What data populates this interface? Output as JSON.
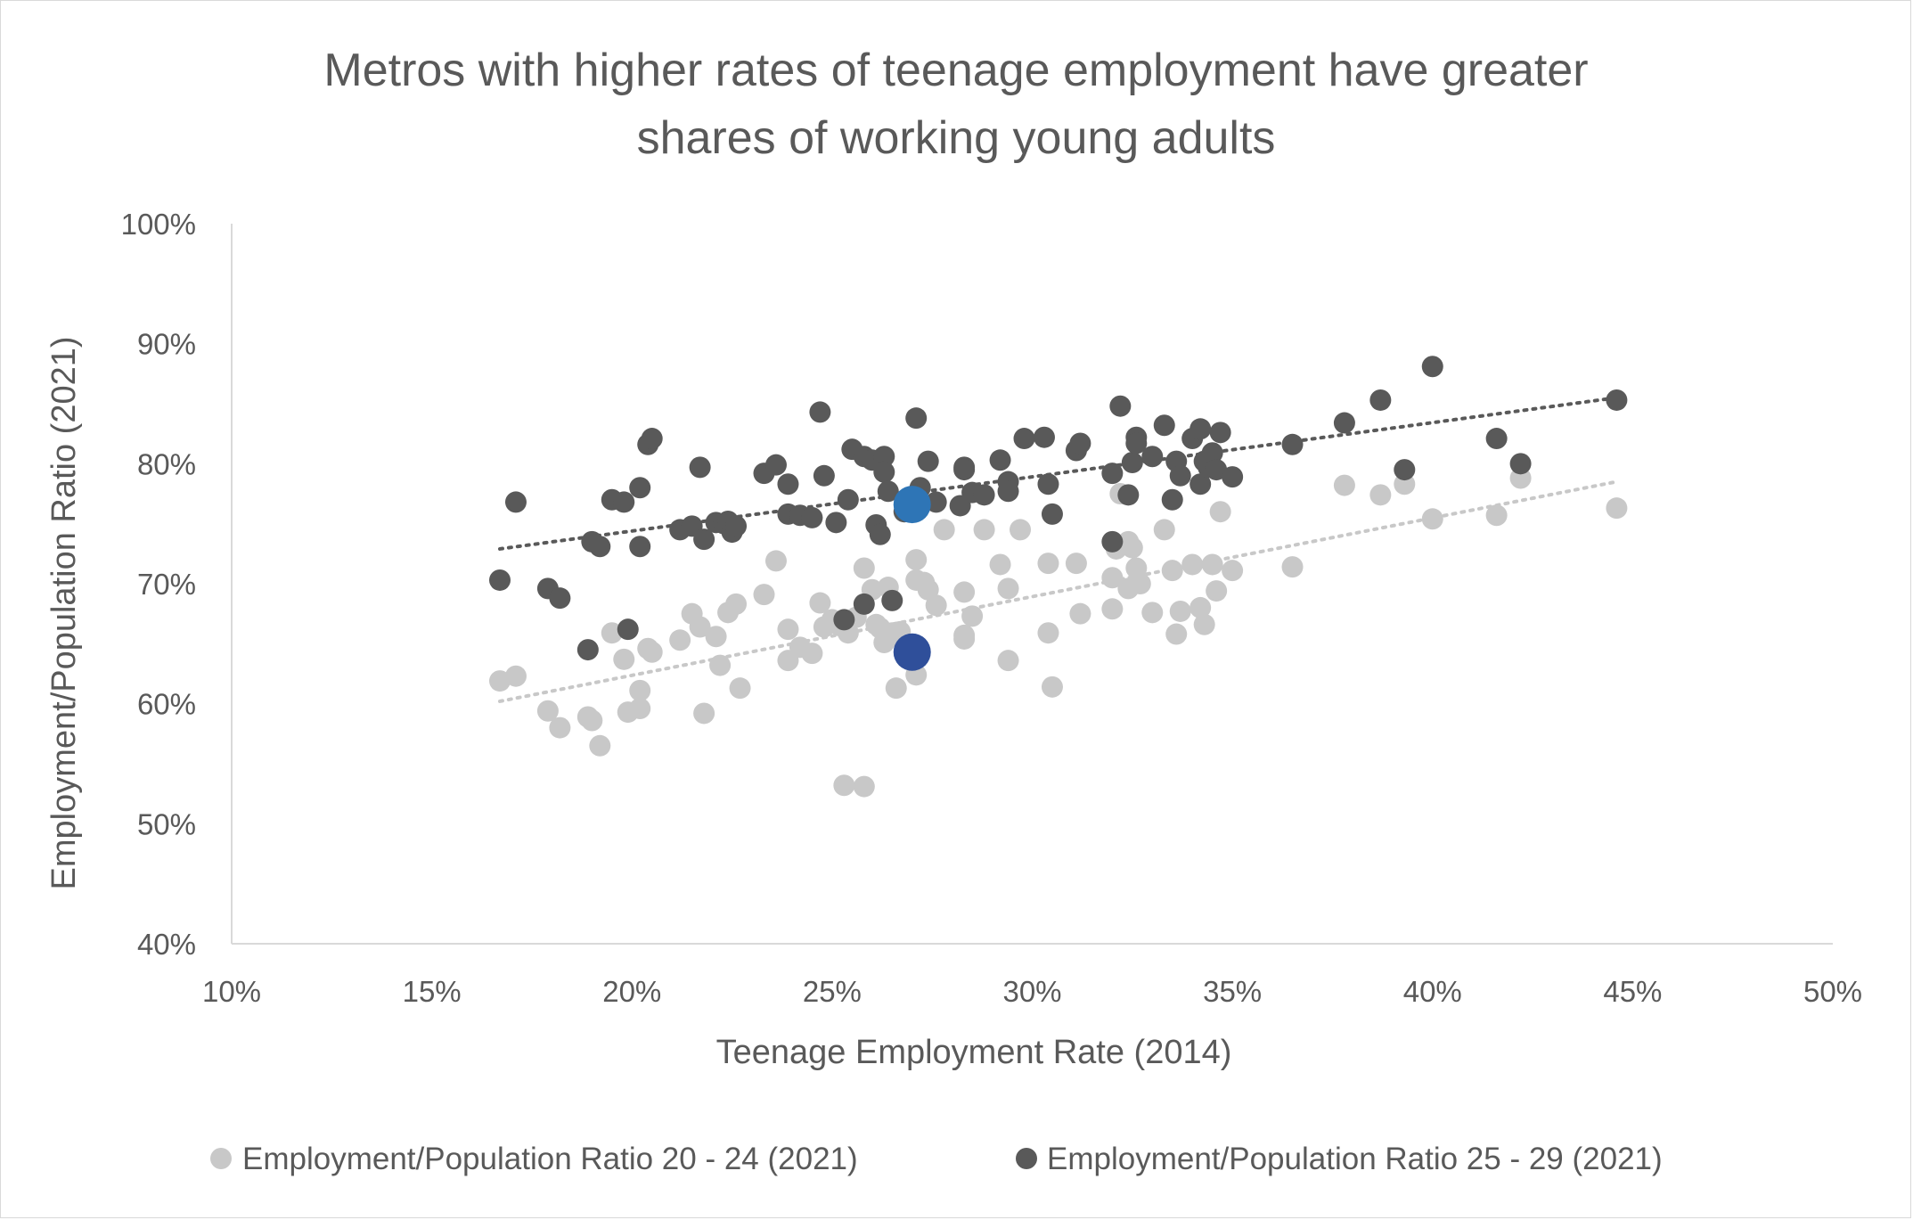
{
  "chart_data": {
    "type": "scatter",
    "title": "Metros with higher rates of teenage employment have greater shares of working young adults",
    "title_lines": [
      "Metros with higher rates of teenage employment have greater",
      "shares of working young adults"
    ],
    "xlabel": "Teenage Employment Rate (2014)",
    "ylabel": "Employment/Population Ratio (2021)",
    "xlim": [
      0.1,
      0.5
    ],
    "ylim": [
      0.4,
      1.0
    ],
    "x_ticks": [
      0.1,
      0.15,
      0.2,
      0.25,
      0.3,
      0.35,
      0.4,
      0.45,
      0.5
    ],
    "x_tick_labels": [
      "10%",
      "15%",
      "20%",
      "25%",
      "30%",
      "35%",
      "40%",
      "45%",
      "50%"
    ],
    "y_ticks": [
      0.4,
      0.5,
      0.6,
      0.7,
      0.8,
      0.9,
      1.0
    ],
    "y_tick_labels": [
      "40%",
      "50%",
      "60%",
      "70%",
      "80%",
      "90%",
      "100%"
    ],
    "grid": false,
    "legend_position": "bottom",
    "series": [
      {
        "name": "Employment/Population Ratio 20 - 24 (2021)",
        "color": "#c8c8c8",
        "trendline": {
          "style": "dotted",
          "x": [
            0.167,
            0.446
          ],
          "y": [
            0.602,
            0.785
          ]
        },
        "highlight": {
          "x": 0.27,
          "y": 0.643,
          "color": "#2f4f9a"
        },
        "points": [
          [
            0.167,
            0.619
          ],
          [
            0.171,
            0.623
          ],
          [
            0.179,
            0.594
          ],
          [
            0.182,
            0.58
          ],
          [
            0.189,
            0.589
          ],
          [
            0.19,
            0.586
          ],
          [
            0.192,
            0.565
          ],
          [
            0.195,
            0.659
          ],
          [
            0.198,
            0.637
          ],
          [
            0.199,
            0.593
          ],
          [
            0.202,
            0.596
          ],
          [
            0.202,
            0.611
          ],
          [
            0.204,
            0.646
          ],
          [
            0.205,
            0.643
          ],
          [
            0.212,
            0.653
          ],
          [
            0.215,
            0.675
          ],
          [
            0.217,
            0.664
          ],
          [
            0.218,
            0.592
          ],
          [
            0.221,
            0.656
          ],
          [
            0.222,
            0.632
          ],
          [
            0.224,
            0.676
          ],
          [
            0.226,
            0.683
          ],
          [
            0.227,
            0.613
          ],
          [
            0.233,
            0.691
          ],
          [
            0.236,
            0.719
          ],
          [
            0.239,
            0.662
          ],
          [
            0.239,
            0.636
          ],
          [
            0.242,
            0.647
          ],
          [
            0.245,
            0.642
          ],
          [
            0.247,
            0.684
          ],
          [
            0.248,
            0.664
          ],
          [
            0.25,
            0.67
          ],
          [
            0.252,
            0.665
          ],
          [
            0.253,
            0.532
          ],
          [
            0.254,
            0.659
          ],
          [
            0.256,
            0.672
          ],
          [
            0.258,
            0.713
          ],
          [
            0.258,
            0.531
          ],
          [
            0.26,
            0.695
          ],
          [
            0.261,
            0.666
          ],
          [
            0.262,
            0.663
          ],
          [
            0.263,
            0.651
          ],
          [
            0.264,
            0.697
          ],
          [
            0.265,
            0.659
          ],
          [
            0.266,
            0.613
          ],
          [
            0.267,
            0.66
          ],
          [
            0.268,
            0.651
          ],
          [
            0.271,
            0.72
          ],
          [
            0.271,
            0.703
          ],
          [
            0.271,
            0.624
          ],
          [
            0.273,
            0.701
          ],
          [
            0.274,
            0.695
          ],
          [
            0.276,
            0.682
          ],
          [
            0.278,
            0.745
          ],
          [
            0.283,
            0.657
          ],
          [
            0.283,
            0.693
          ],
          [
            0.283,
            0.654
          ],
          [
            0.285,
            0.673
          ],
          [
            0.288,
            0.745
          ],
          [
            0.292,
            0.716
          ],
          [
            0.294,
            0.636
          ],
          [
            0.294,
            0.696
          ],
          [
            0.297,
            0.745
          ],
          [
            0.304,
            0.659
          ],
          [
            0.304,
            0.717
          ],
          [
            0.305,
            0.614
          ],
          [
            0.311,
            0.717
          ],
          [
            0.312,
            0.675
          ],
          [
            0.32,
            0.679
          ],
          [
            0.32,
            0.705
          ],
          [
            0.321,
            0.729
          ],
          [
            0.322,
            0.775
          ],
          [
            0.324,
            0.696
          ],
          [
            0.324,
            0.735
          ],
          [
            0.325,
            0.73
          ],
          [
            0.326,
            0.713
          ],
          [
            0.327,
            0.7
          ],
          [
            0.33,
            0.676
          ],
          [
            0.333,
            0.745
          ],
          [
            0.335,
            0.711
          ],
          [
            0.336,
            0.658
          ],
          [
            0.337,
            0.677
          ],
          [
            0.34,
            0.716
          ],
          [
            0.342,
            0.68
          ],
          [
            0.343,
            0.666
          ],
          [
            0.345,
            0.716
          ],
          [
            0.346,
            0.694
          ],
          [
            0.347,
            0.76
          ],
          [
            0.35,
            0.711
          ],
          [
            0.365,
            0.714
          ],
          [
            0.378,
            0.782
          ],
          [
            0.387,
            0.774
          ],
          [
            0.393,
            0.783
          ],
          [
            0.4,
            0.754
          ],
          [
            0.416,
            0.757
          ],
          [
            0.422,
            0.788
          ],
          [
            0.446,
            0.763
          ]
        ]
      },
      {
        "name": "Employment/Population Ratio 25 - 29 (2021)",
        "color": "#595959",
        "trendline": {
          "style": "dotted",
          "x": [
            0.167,
            0.446
          ],
          "y": [
            0.729,
            0.855
          ]
        },
        "highlight": {
          "x": 0.27,
          "y": 0.766,
          "color": "#2e75b6"
        },
        "points": [
          [
            0.167,
            0.703
          ],
          [
            0.171,
            0.768
          ],
          [
            0.179,
            0.696
          ],
          [
            0.182,
            0.688
          ],
          [
            0.189,
            0.645
          ],
          [
            0.19,
            0.735
          ],
          [
            0.192,
            0.731
          ],
          [
            0.195,
            0.77
          ],
          [
            0.198,
            0.768
          ],
          [
            0.199,
            0.662
          ],
          [
            0.202,
            0.78
          ],
          [
            0.202,
            0.731
          ],
          [
            0.204,
            0.816
          ],
          [
            0.205,
            0.821
          ],
          [
            0.212,
            0.745
          ],
          [
            0.215,
            0.748
          ],
          [
            0.217,
            0.797
          ],
          [
            0.218,
            0.737
          ],
          [
            0.221,
            0.751
          ],
          [
            0.223,
            0.75
          ],
          [
            0.224,
            0.752
          ],
          [
            0.225,
            0.743
          ],
          [
            0.226,
            0.748
          ],
          [
            0.233,
            0.792
          ],
          [
            0.236,
            0.799
          ],
          [
            0.239,
            0.783
          ],
          [
            0.239,
            0.758
          ],
          [
            0.242,
            0.757
          ],
          [
            0.245,
            0.755
          ],
          [
            0.247,
            0.843
          ],
          [
            0.248,
            0.79
          ],
          [
            0.251,
            0.751
          ],
          [
            0.253,
            0.67
          ],
          [
            0.254,
            0.77
          ],
          [
            0.255,
            0.812
          ],
          [
            0.258,
            0.683
          ],
          [
            0.258,
            0.806
          ],
          [
            0.26,
            0.803
          ],
          [
            0.261,
            0.749
          ],
          [
            0.262,
            0.741
          ],
          [
            0.263,
            0.806
          ],
          [
            0.263,
            0.793
          ],
          [
            0.264,
            0.777
          ],
          [
            0.265,
            0.686
          ],
          [
            0.268,
            0.76
          ],
          [
            0.27,
            0.772
          ],
          [
            0.271,
            0.838
          ],
          [
            0.272,
            0.78
          ],
          [
            0.274,
            0.802
          ],
          [
            0.276,
            0.768
          ],
          [
            0.282,
            0.765
          ],
          [
            0.283,
            0.797
          ],
          [
            0.283,
            0.795
          ],
          [
            0.285,
            0.776
          ],
          [
            0.288,
            0.774
          ],
          [
            0.292,
            0.803
          ],
          [
            0.294,
            0.785
          ],
          [
            0.294,
            0.777
          ],
          [
            0.298,
            0.821
          ],
          [
            0.303,
            0.822
          ],
          [
            0.304,
            0.783
          ],
          [
            0.305,
            0.758
          ],
          [
            0.311,
            0.811
          ],
          [
            0.312,
            0.817
          ],
          [
            0.32,
            0.735
          ],
          [
            0.32,
            0.792
          ],
          [
            0.322,
            0.848
          ],
          [
            0.324,
            0.774
          ],
          [
            0.325,
            0.801
          ],
          [
            0.326,
            0.822
          ],
          [
            0.326,
            0.817
          ],
          [
            0.33,
            0.806
          ],
          [
            0.333,
            0.832
          ],
          [
            0.335,
            0.77
          ],
          [
            0.336,
            0.802
          ],
          [
            0.337,
            0.79
          ],
          [
            0.34,
            0.821
          ],
          [
            0.342,
            0.829
          ],
          [
            0.342,
            0.783
          ],
          [
            0.343,
            0.802
          ],
          [
            0.344,
            0.797
          ],
          [
            0.345,
            0.809
          ],
          [
            0.346,
            0.795
          ],
          [
            0.347,
            0.826
          ],
          [
            0.35,
            0.789
          ],
          [
            0.365,
            0.816
          ],
          [
            0.378,
            0.834
          ],
          [
            0.387,
            0.853
          ],
          [
            0.393,
            0.795
          ],
          [
            0.4,
            0.881
          ],
          [
            0.416,
            0.821
          ],
          [
            0.422,
            0.8
          ],
          [
            0.446,
            0.853
          ]
        ]
      }
    ]
  }
}
